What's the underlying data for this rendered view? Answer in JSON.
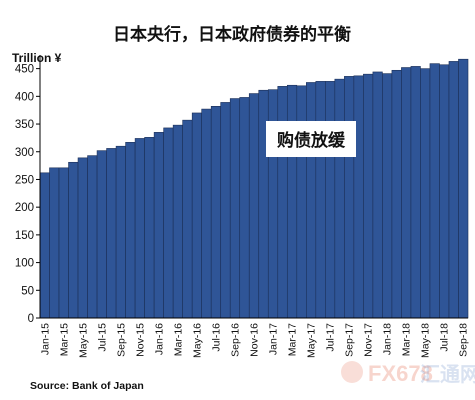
{
  "chart_data": {
    "type": "bar",
    "title": "日本央行，日本政府债券的平衡",
    "ylabel": "Trillion ¥",
    "ylim": [
      0,
      450
    ],
    "yticks": [
      0,
      50,
      100,
      150,
      200,
      250,
      300,
      350,
      400,
      450
    ],
    "grid": false,
    "legend": "none",
    "bar_color": "#2f5597",
    "categories": [
      "Jan-15",
      "Feb-15",
      "Mar-15",
      "Apr-15",
      "May-15",
      "Jun-15",
      "Jul-15",
      "Aug-15",
      "Sep-15",
      "Oct-15",
      "Nov-15",
      "Dec-15",
      "Jan-16",
      "Feb-16",
      "Mar-16",
      "Apr-16",
      "May-16",
      "Jun-16",
      "Jul-16",
      "Aug-16",
      "Sep-16",
      "Oct-16",
      "Nov-16",
      "Dec-16",
      "Jan-17",
      "Feb-17",
      "Mar-17",
      "Apr-17",
      "May-17",
      "Jun-17",
      "Jul-17",
      "Aug-17",
      "Sep-17",
      "Oct-17",
      "Nov-17",
      "Dec-17",
      "Jan-18",
      "Feb-18",
      "Mar-18",
      "Apr-18",
      "May-18",
      "Jun-18",
      "Jul-18",
      "Aug-18",
      "Sep-18"
    ],
    "tick_labels": [
      "Jan-15",
      "Mar-15",
      "May-15",
      "Jul-15",
      "Sep-15",
      "Nov-15",
      "Jan-16",
      "Mar-16",
      "May-16",
      "Jul-16",
      "Sep-16",
      "Nov-16",
      "Jan-17",
      "Mar-17",
      "May-17",
      "Jul-17",
      "Sep-17",
      "Nov-17",
      "Jan-18",
      "Mar-18",
      "May-18",
      "Jul-18",
      "Sep-18"
    ],
    "values": [
      262,
      271,
      271,
      281,
      289,
      293,
      302,
      306,
      310,
      317,
      324,
      326,
      335,
      343,
      348,
      357,
      370,
      377,
      382,
      389,
      396,
      398,
      405,
      411,
      412,
      418,
      420,
      419,
      425,
      427,
      427,
      431,
      436,
      437,
      440,
      444,
      441,
      447,
      452,
      454,
      450,
      459,
      457,
      463,
      467
    ],
    "annotation": "购债放缓",
    "source": "Source: Bank of Japan"
  },
  "watermark": {
    "brand": "FX678",
    "suffix": "汇通网"
  }
}
